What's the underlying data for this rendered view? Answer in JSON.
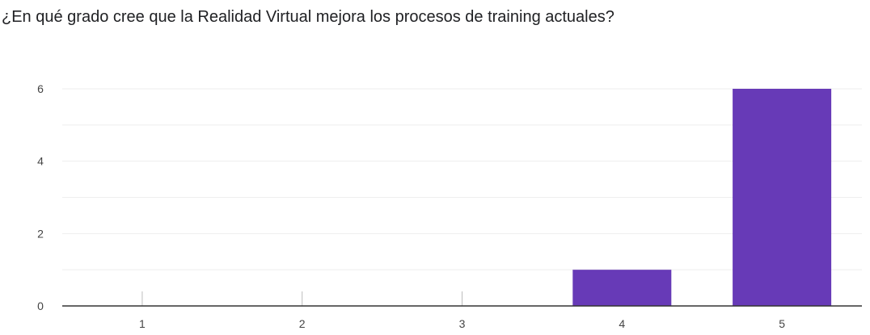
{
  "chart_data": {
    "type": "bar",
    "title": "¿En qué grado cree que la Realidad Virtual mejora los procesos de training actuales?",
    "categories": [
      "1",
      "2",
      "3",
      "4",
      "5"
    ],
    "values": [
      0,
      0,
      0,
      1,
      6
    ],
    "xlabel": "",
    "ylabel": "",
    "ylim": [
      0,
      6
    ],
    "yticks": [
      "0",
      "2",
      "4",
      "6"
    ],
    "grid": true,
    "legend": "none",
    "bar_color": "#673ab7",
    "gridline_color": "#eeeeee",
    "axis_color": "#333333"
  }
}
